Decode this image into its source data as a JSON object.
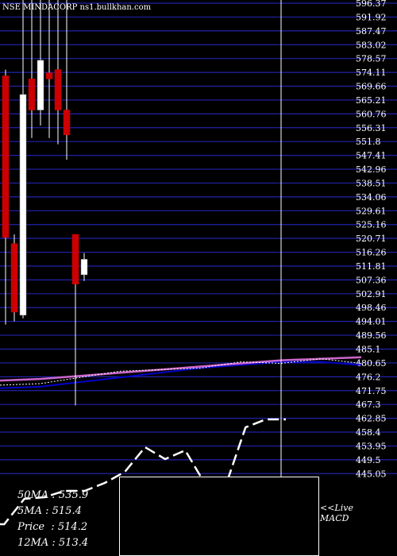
{
  "header": {
    "title": "NSE MINDACORP ns1.bullkhan.com"
  },
  "stats": [
    {
      "label": "50MA",
      "value": "535.9"
    },
    {
      "label": "5MA",
      "value": "515.4"
    },
    {
      "label": "Price",
      "value": "514.2"
    },
    {
      "label": "12MA",
      "value": "513.4"
    }
  ],
  "live_note": {
    "line1": "<<Live",
    "line2": "MACD"
  },
  "colors": {
    "background": "#000000",
    "grid": "#2222aa",
    "bull_candle": "#ffffff",
    "bear_candle": "#cc0000",
    "ma_blue": "#0000cc",
    "ma_pink": "#cc66cc",
    "ma_dotted": "#ffffff",
    "macd_line": "#ffffff"
  },
  "chart_data": {
    "type": "candlestick",
    "y_tick_labels": [
      "596.37",
      "591.92",
      "587.47",
      "583.02",
      "578.57",
      "574.11",
      "569.66",
      "565.21",
      "560.76",
      "556.31",
      "551.8",
      "547.41",
      "542.96",
      "538.51",
      "534.06",
      "529.61",
      "525.16",
      "520.71",
      "516.26",
      "511.81",
      "507.36",
      "502.91",
      "498.46",
      "494.01",
      "489.56",
      "485.1",
      "480.65",
      "476.2",
      "471.75",
      "467.3",
      "462.85",
      "458.4",
      "453.95",
      "449.5",
      "445.05"
    ],
    "ylim": [
      445.05,
      596.37
    ],
    "candles": [
      {
        "open": 573,
        "high": 575,
        "low": 493,
        "close": 521,
        "direction": "down"
      },
      {
        "open": 519,
        "high": 522,
        "low": 494,
        "close": 497,
        "direction": "down"
      },
      {
        "open": 496,
        "high": 600,
        "low": 495,
        "close": 567,
        "direction": "up"
      },
      {
        "open": 562,
        "high": 600,
        "low": 553,
        "close": 572,
        "direction": "down"
      },
      {
        "open": 562,
        "high": 600,
        "low": 557,
        "close": 578,
        "direction": "up"
      },
      {
        "open": 574,
        "high": 600,
        "low": 553,
        "close": 572,
        "direction": "down"
      },
      {
        "open": 575,
        "high": 600,
        "low": 551,
        "close": 562,
        "direction": "down"
      },
      {
        "open": 562,
        "high": 600,
        "low": 546,
        "close": 554,
        "direction": "down"
      },
      {
        "open": 522,
        "high": 522,
        "low": 467,
        "close": 506,
        "direction": "down"
      },
      {
        "open": 509,
        "high": 516,
        "low": 507,
        "close": 514,
        "direction": "up"
      }
    ],
    "series": [
      {
        "values": [
          472.5,
          473,
          474.5,
          476,
          477.5,
          479,
          480,
          481,
          481,
          480
        ]
      },
      {
        "values": [
          475,
          475.5,
          476.5,
          477.5,
          478.5,
          479.5,
          480.5,
          481.5,
          482,
          482.5
        ]
      },
      {
        "values": [
          473.5,
          474,
          476,
          478,
          478.5,
          479,
          481,
          480.5,
          482,
          480.5
        ]
      }
    ],
    "macd": [
      40,
      40,
      72,
      74,
      82,
      82,
      92,
      106,
      137,
      122,
      133,
      90,
      88,
      162,
      172,
      172
    ],
    "macd_range": [
      0,
      200
    ],
    "current_price_line": true
  }
}
